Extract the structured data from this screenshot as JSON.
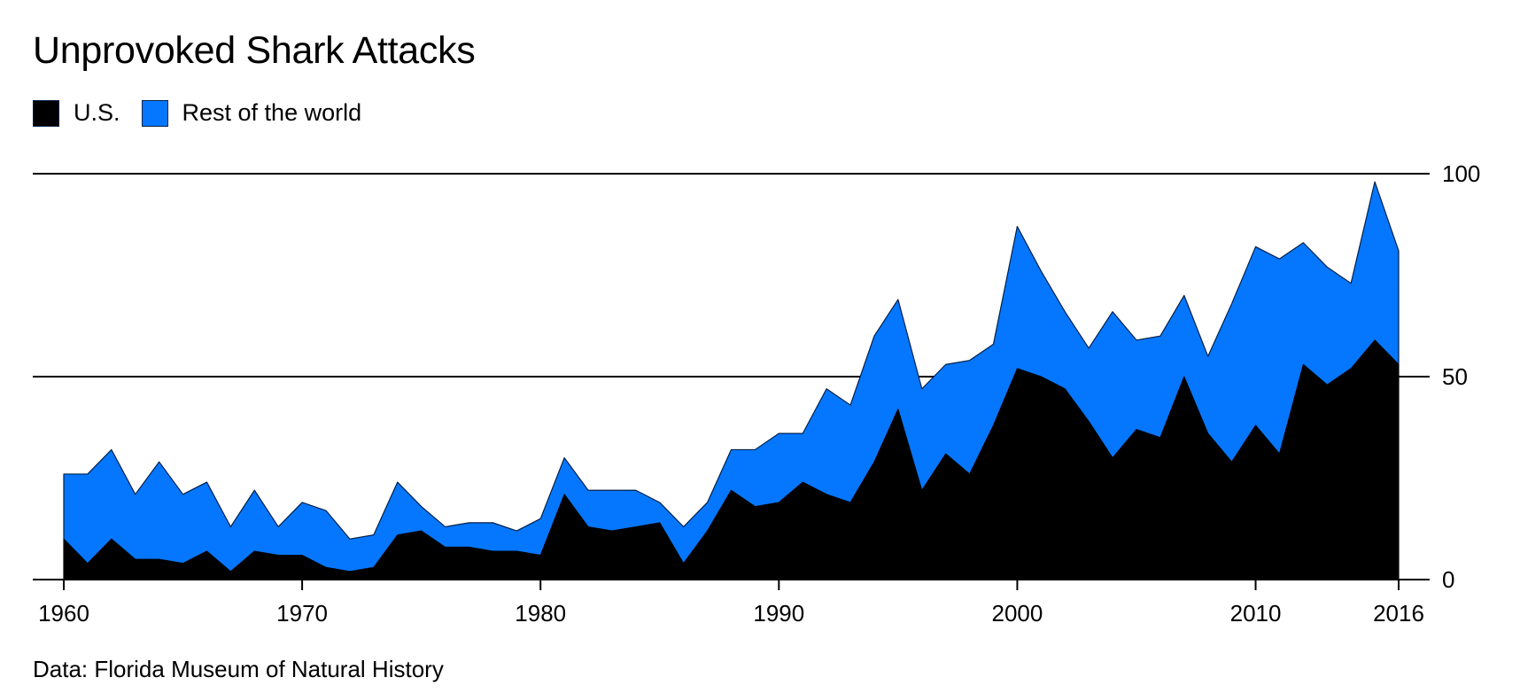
{
  "chart_data": {
    "type": "area",
    "stacked": true,
    "title": "Unprovoked Shark Attacks",
    "source": "Data: Florida Museum of Natural History",
    "x": [
      1960,
      1961,
      1962,
      1963,
      1964,
      1965,
      1966,
      1967,
      1968,
      1969,
      1970,
      1971,
      1972,
      1973,
      1974,
      1975,
      1976,
      1977,
      1978,
      1979,
      1980,
      1981,
      1982,
      1983,
      1984,
      1985,
      1986,
      1987,
      1988,
      1989,
      1990,
      1991,
      1992,
      1993,
      1994,
      1995,
      1996,
      1997,
      1998,
      1999,
      2000,
      2001,
      2002,
      2003,
      2004,
      2005,
      2006,
      2007,
      2008,
      2009,
      2010,
      2011,
      2012,
      2013,
      2014,
      2015,
      2016
    ],
    "series": [
      {
        "name": "U.S.",
        "color": "#000000",
        "values": [
          10,
          4,
          10,
          5,
          5,
          4,
          7,
          2,
          7,
          6,
          6,
          3,
          2,
          3,
          11,
          12,
          8,
          8,
          7,
          7,
          6,
          21,
          13,
          12,
          13,
          14,
          4,
          12,
          22,
          18,
          19,
          24,
          21,
          19,
          29,
          42,
          22,
          31,
          26,
          38,
          52,
          50,
          47,
          39,
          30,
          37,
          35,
          50,
          36,
          29,
          38,
          31,
          53,
          48,
          52,
          59,
          53
        ]
      },
      {
        "name": "Rest of the world",
        "color": "#0577ff",
        "values": [
          16,
          22,
          22,
          16,
          24,
          17,
          17,
          11,
          15,
          7,
          13,
          14,
          8,
          8,
          13,
          6,
          5,
          6,
          7,
          5,
          9,
          9,
          9,
          10,
          9,
          5,
          9,
          7,
          10,
          14,
          17,
          12,
          26,
          24,
          31,
          27,
          25,
          22,
          28,
          20,
          35,
          26,
          19,
          18,
          36,
          22,
          25,
          20,
          19,
          39,
          44,
          48,
          30,
          29,
          21,
          39,
          28
        ]
      }
    ],
    "ylim": [
      0,
      100
    ],
    "yticks": [
      "0",
      "50",
      "100"
    ],
    "xticks": [
      "1960",
      "1970",
      "1980",
      "1990",
      "2000",
      "2010",
      "2016"
    ],
    "xlabel": "",
    "ylabel": "",
    "grid": true,
    "legend_position": "top-left"
  }
}
